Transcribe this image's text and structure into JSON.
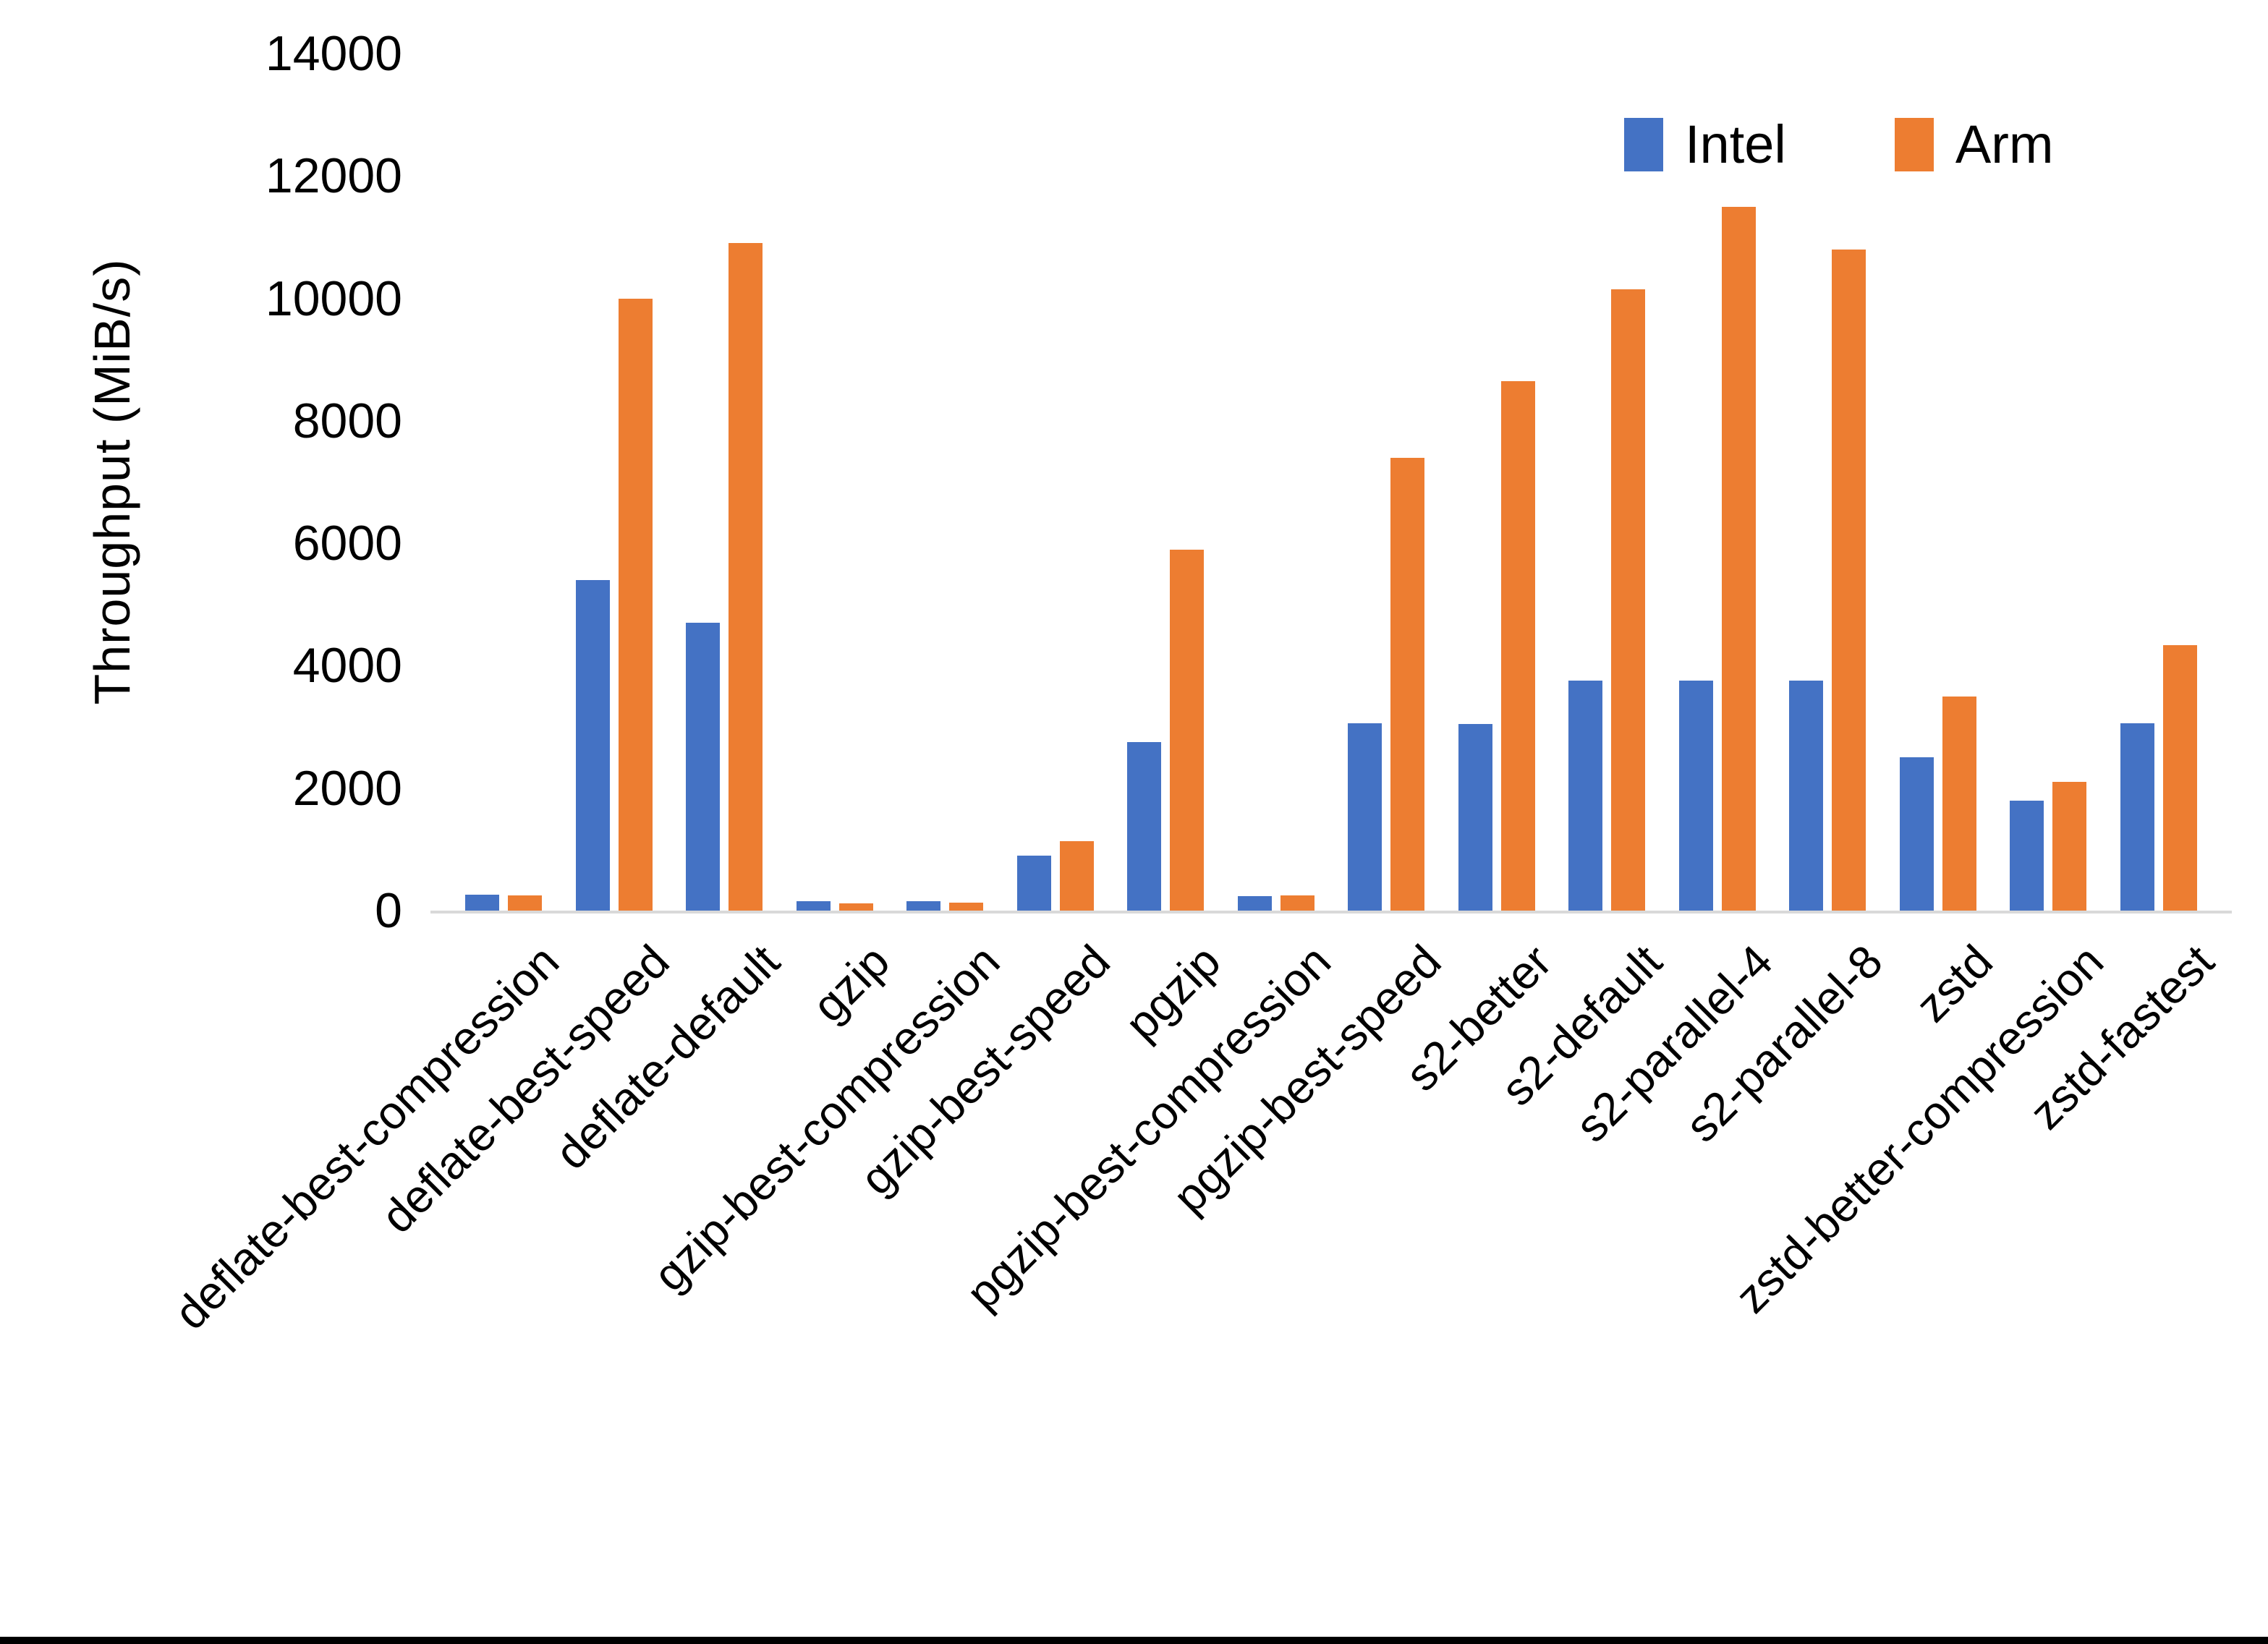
{
  "chart_data": {
    "type": "bar",
    "title": "",
    "xlabel": "",
    "ylabel": "Throughput (MiB/s)",
    "ylim": [
      0,
      14000
    ],
    "ytick_step": 2000,
    "grid": false,
    "legend_position": "top-right",
    "categories": [
      "deflate-best-compression",
      "deflate-best-speed",
      "deflate-default",
      "gzip",
      "gzip-best-compression",
      "gzip-best-speed",
      "pgzip",
      "pgzip-best-compression",
      "pgzip-best-speed",
      "s2-better",
      "s2-default",
      "s2-parallel-4",
      "s2-parallel-8",
      "zstd",
      "zstd-better-compression",
      "zstd-fastest"
    ],
    "series": [
      {
        "name": "Intel",
        "color": "#4472C4",
        "values": [
          260,
          5400,
          4700,
          150,
          150,
          900,
          2750,
          240,
          3060,
          3050,
          3760,
          3760,
          3760,
          2500,
          1790,
          3060
        ]
      },
      {
        "name": "Arm",
        "color": "#ED7D31",
        "values": [
          250,
          10000,
          10900,
          120,
          130,
          1130,
          5900,
          250,
          7400,
          8650,
          10150,
          11500,
          10800,
          3500,
          2100,
          4340
        ]
      }
    ]
  },
  "colors": {
    "axis_line": "#D9D9D9",
    "text": "#000000",
    "bottom_border": "#000000",
    "background": "#FFFFFF"
  }
}
